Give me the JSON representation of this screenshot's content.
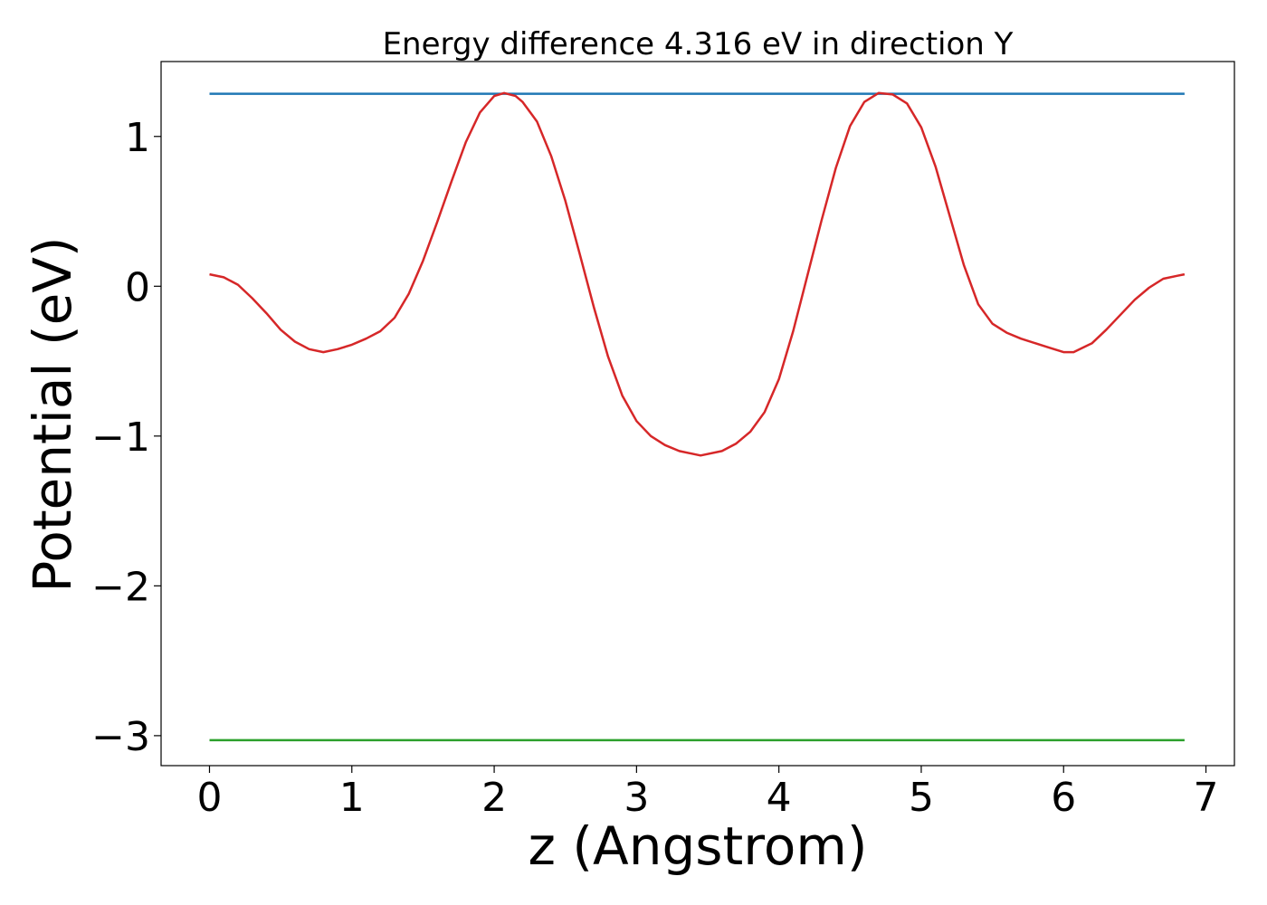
{
  "chart_data": {
    "type": "line",
    "title": "Energy difference 4.316 eV in direction Y",
    "xlabel": "z (Angstrom)",
    "ylabel": "Potential (eV)",
    "xlim": [
      -0.34,
      7.2
    ],
    "ylim": [
      -3.2,
      1.5
    ],
    "xticks": [
      0,
      1,
      2,
      3,
      4,
      5,
      6,
      7
    ],
    "xtick_labels": [
      "0",
      "1",
      "2",
      "3",
      "4",
      "5",
      "6",
      "7"
    ],
    "yticks": [
      1,
      0,
      -1,
      -2,
      -3
    ],
    "ytick_labels": [
      "1",
      "0",
      "−1",
      "−2",
      "−3"
    ],
    "grid": false,
    "series": [
      {
        "color": "#1f77b4",
        "x": [
          0,
          6.85
        ],
        "y": [
          1.285,
          1.285
        ]
      },
      {
        "color": "#2ca02c",
        "x": [
          0,
          6.85
        ],
        "y": [
          -3.03,
          -3.03
        ]
      },
      {
        "color": "#d62728",
        "x": [
          0,
          0.1,
          0.2,
          0.3,
          0.4,
          0.5,
          0.6,
          0.7,
          0.8,
          0.9,
          1.0,
          1.1,
          1.2,
          1.3,
          1.4,
          1.5,
          1.6,
          1.7,
          1.8,
          1.9,
          2.0,
          2.07,
          2.15,
          2.2,
          2.3,
          2.4,
          2.5,
          2.6,
          2.7,
          2.8,
          2.9,
          3.0,
          3.1,
          3.2,
          3.3,
          3.45,
          3.6,
          3.7,
          3.8,
          3.9,
          4.0,
          4.1,
          4.2,
          4.3,
          4.4,
          4.5,
          4.6,
          4.7,
          4.8,
          4.9,
          5.0,
          5.1,
          5.2,
          5.3,
          5.4,
          5.5,
          5.6,
          5.7,
          5.8,
          5.9,
          6.0,
          6.07,
          6.2,
          6.3,
          6.4,
          6.5,
          6.6,
          6.7,
          6.8,
          6.85
        ],
        "y": [
          0.08,
          0.06,
          0.01,
          -0.08,
          -0.18,
          -0.29,
          -0.37,
          -0.42,
          -0.44,
          -0.42,
          -0.39,
          -0.35,
          -0.3,
          -0.21,
          -0.05,
          0.17,
          0.43,
          0.7,
          0.96,
          1.16,
          1.27,
          1.29,
          1.27,
          1.23,
          1.1,
          0.87,
          0.57,
          0.22,
          -0.14,
          -0.47,
          -0.73,
          -0.9,
          -1.0,
          -1.06,
          -1.1,
          -1.13,
          -1.1,
          -1.05,
          -0.97,
          -0.84,
          -0.62,
          -0.3,
          0.07,
          0.44,
          0.79,
          1.07,
          1.23,
          1.29,
          1.28,
          1.22,
          1.06,
          0.8,
          0.47,
          0.14,
          -0.12,
          -0.25,
          -0.31,
          -0.35,
          -0.38,
          -0.41,
          -0.44,
          -0.44,
          -0.38,
          -0.29,
          -0.19,
          -0.09,
          -0.01,
          0.05,
          0.07,
          0.08
        ]
      }
    ]
  }
}
